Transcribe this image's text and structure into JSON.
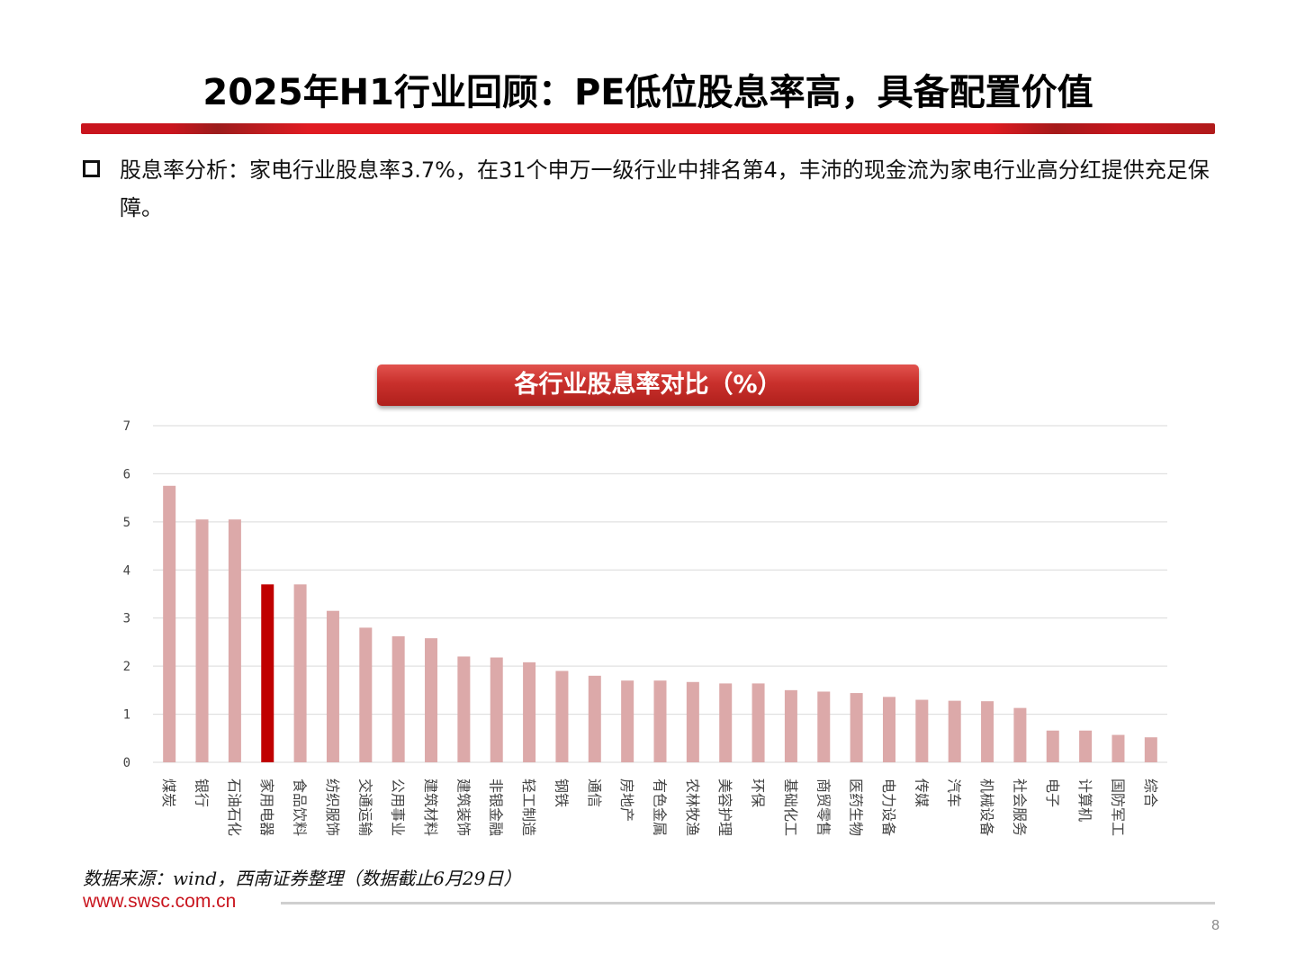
{
  "slide": {
    "title": "2025年H1行业回顾：PE低位股息率高，具备配置价值",
    "bullet": "股息率分析：家电行业股息率3.7%，在31个申万一级行业中排名第4，丰沛的现金流为家电行业高分红提供充足保障。",
    "chart_title": "各行业股息率对比（%）",
    "source": "数据来源：wind，西南证券整理（数据截止6月29日）",
    "footer_url": "www.swsc.com.cn",
    "page_number": "8"
  },
  "colors": {
    "bar_default": "#dca9a9",
    "bar_highlight": "#c00000",
    "accent": "#c9151e"
  },
  "chart_data": {
    "type": "bar",
    "title": "各行业股息率对比（%）",
    "xlabel": "",
    "ylabel": "",
    "ylim": [
      0,
      7
    ],
    "yticks": [
      "0",
      "1",
      "2",
      "3",
      "4",
      "5",
      "6",
      "7"
    ],
    "grid": true,
    "highlight_category": "家用电器",
    "categories": [
      "煤炭",
      "银行",
      "石油石化",
      "家用电器",
      "食品饮料",
      "纺织服饰",
      "交通运输",
      "公用事业",
      "建筑材料",
      "建筑装饰",
      "非银金融",
      "轻工制造",
      "钢铁",
      "通信",
      "房地产",
      "有色金属",
      "农林牧渔",
      "美容护理",
      "环保",
      "基础化工",
      "商贸零售",
      "医药生物",
      "电力设备",
      "传媒",
      "汽车",
      "机械设备",
      "社会服务",
      "电子",
      "计算机",
      "国防军工",
      "综合"
    ],
    "values": [
      5.75,
      5.05,
      5.05,
      3.7,
      3.7,
      3.15,
      2.8,
      2.62,
      2.58,
      2.2,
      2.18,
      2.08,
      1.9,
      1.8,
      1.7,
      1.7,
      1.67,
      1.64,
      1.64,
      1.5,
      1.47,
      1.44,
      1.36,
      1.3,
      1.28,
      1.27,
      1.13,
      0.66,
      0.66,
      0.57,
      0.52
    ]
  }
}
